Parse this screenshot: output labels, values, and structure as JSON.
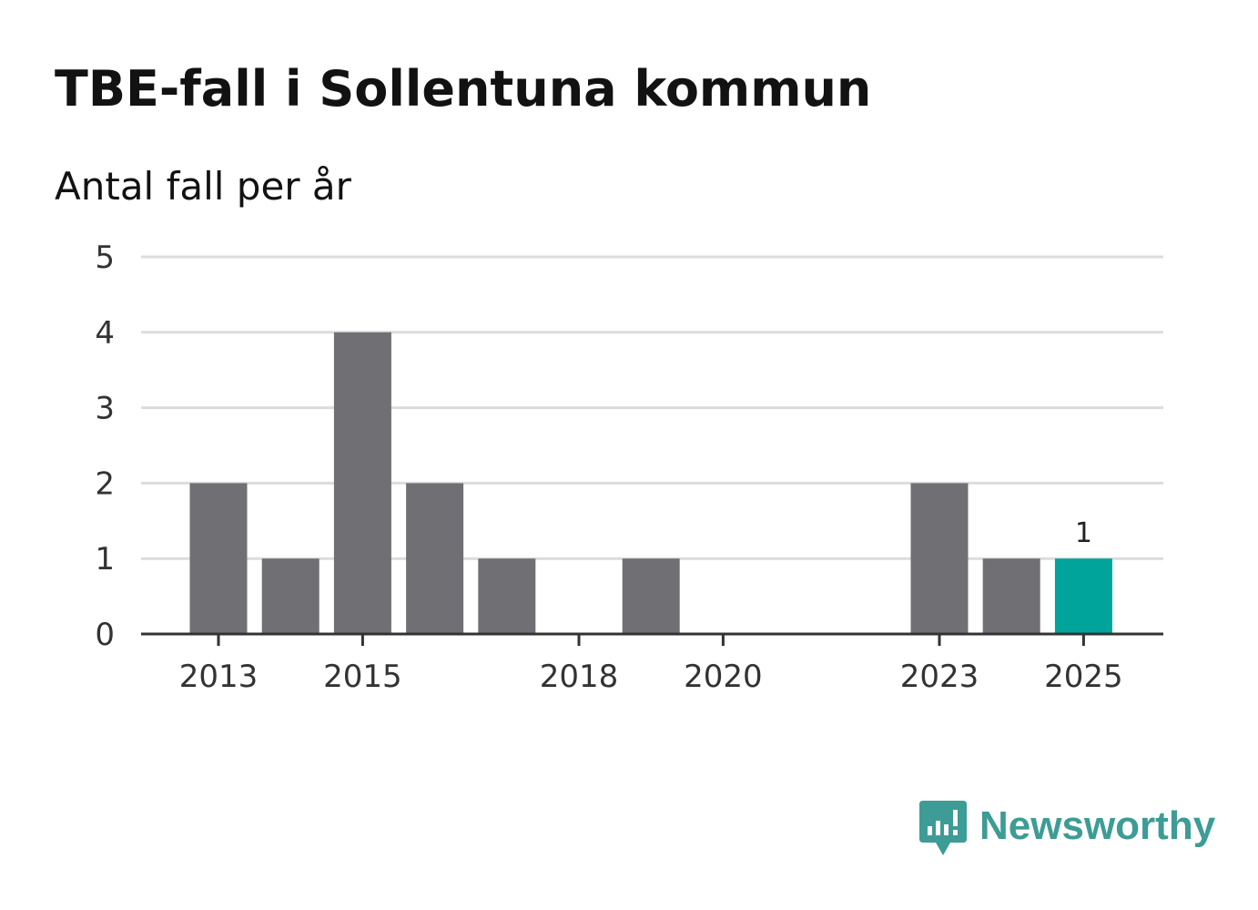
{
  "chart_data": {
    "type": "bar",
    "title": "TBE-fall i Sollentuna kommun",
    "subtitle": "Antal fall per år",
    "xlabel": "",
    "ylabel": "",
    "x": [
      2013,
      2014,
      2015,
      2016,
      2017,
      2018,
      2019,
      2020,
      2021,
      2022,
      2023,
      2024,
      2025
    ],
    "values": [
      2,
      1,
      4,
      2,
      1,
      0,
      1,
      0,
      0,
      0,
      2,
      1,
      1
    ],
    "x_tick_labels": [
      "2013",
      "2015",
      "2018",
      "2020",
      "2023",
      "2025"
    ],
    "y_tick_labels": [
      "0",
      "1",
      "2",
      "3",
      "4",
      "5"
    ],
    "ylim": [
      0,
      5
    ],
    "grid": true,
    "highlight": {
      "x": 2025,
      "label": "1"
    },
    "colors": {
      "bar": "#706f74",
      "highlight": "#00a49a",
      "grid": "#dcdcdc",
      "axis": "#333333"
    }
  },
  "brand": {
    "name": "Newsworthy",
    "color": "#3d9c95"
  }
}
